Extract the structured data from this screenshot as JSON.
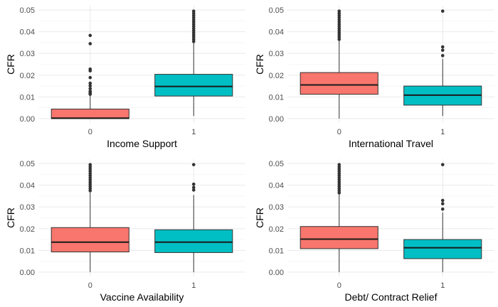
{
  "chart_data": [
    {
      "type": "box",
      "xlabel": "Income Support",
      "ylabel": "CFR",
      "ylim": [
        -0.002,
        0.052
      ],
      "yticks": [
        "0.00",
        "0.01",
        "0.02",
        "0.03",
        "0.04",
        "0.05"
      ],
      "categories": [
        "0",
        "1"
      ],
      "colors": [
        "#F8766D",
        "#00BFC4"
      ],
      "grid": true,
      "boxes": [
        {
          "category": "0",
          "q1": 0.0,
          "median": 0.0002,
          "q3": 0.0044,
          "whisker_low": 0.0,
          "whisker_high": 0.0108,
          "outliers": [
            0.0383,
            0.0345,
            0.0228,
            0.022,
            0.0189,
            0.0163,
            0.0151,
            0.0138,
            0.0126,
            0.0121,
            0.0116,
            0.0112
          ]
        },
        {
          "category": "1",
          "q1": 0.0104,
          "median": 0.0148,
          "q3": 0.0204,
          "whisker_low": 0.0012,
          "whisker_high": 0.035,
          "outliers": [
            0.0355,
            0.0365,
            0.0375,
            0.0385,
            0.0395,
            0.0405,
            0.0415,
            0.0425,
            0.0435,
            0.0445,
            0.0455,
            0.0465,
            0.0475,
            0.0485,
            0.0495
          ]
        }
      ]
    },
    {
      "type": "box",
      "xlabel": "International Travel",
      "ylabel": "CFR",
      "ylim": [
        -0.002,
        0.052
      ],
      "yticks": [
        "0.00",
        "0.01",
        "0.02",
        "0.03",
        "0.04",
        "0.05"
      ],
      "categories": [
        "0",
        "1"
      ],
      "colors": [
        "#F8766D",
        "#00BFC4"
      ],
      "grid": true,
      "boxes": [
        {
          "category": "0",
          "q1": 0.0112,
          "median": 0.0155,
          "q3": 0.0212,
          "whisker_low": 0.0,
          "whisker_high": 0.036,
          "outliers": [
            0.0365,
            0.0375,
            0.0385,
            0.0395,
            0.0405,
            0.0415,
            0.0425,
            0.0435,
            0.0445,
            0.0455,
            0.0465,
            0.0475,
            0.0485,
            0.0495
          ]
        },
        {
          "category": "1",
          "q1": 0.0062,
          "median": 0.0108,
          "q3": 0.015,
          "whisker_low": 0.0012,
          "whisker_high": 0.0275,
          "outliers": [
            0.0495,
            0.033,
            0.0315,
            0.029
          ]
        }
      ]
    },
    {
      "type": "box",
      "xlabel": "Vaccine Availability",
      "ylabel": "CFR",
      "ylim": [
        -0.002,
        0.052
      ],
      "yticks": [
        "0.00",
        "0.01",
        "0.02",
        "0.03",
        "0.04",
        "0.05"
      ],
      "categories": [
        "0",
        "1"
      ],
      "colors": [
        "#F8766D",
        "#00BFC4"
      ],
      "grid": true,
      "boxes": [
        {
          "category": "0",
          "q1": 0.0093,
          "median": 0.0138,
          "q3": 0.0205,
          "whisker_low": 0.0,
          "whisker_high": 0.037,
          "outliers": [
            0.0375,
            0.0385,
            0.0395,
            0.0405,
            0.0415,
            0.0425,
            0.0435,
            0.0445,
            0.0455,
            0.0465,
            0.0475,
            0.0485,
            0.0495
          ]
        },
        {
          "category": "1",
          "q1": 0.009,
          "median": 0.0138,
          "q3": 0.0195,
          "whisker_low": 0.0,
          "whisker_high": 0.0355,
          "outliers": [
            0.0495,
            0.0405,
            0.039,
            0.0378
          ]
        }
      ]
    },
    {
      "type": "box",
      "xlabel": "Debt/ Contract Relief",
      "ylabel": "CFR",
      "ylim": [
        -0.002,
        0.052
      ],
      "yticks": [
        "0.00",
        "0.01",
        "0.02",
        "0.03",
        "0.04",
        "0.05"
      ],
      "categories": [
        "0",
        "1"
      ],
      "colors": [
        "#F8766D",
        "#00BFC4"
      ],
      "grid": true,
      "boxes": [
        {
          "category": "0",
          "q1": 0.0108,
          "median": 0.0152,
          "q3": 0.021,
          "whisker_low": 0.0,
          "whisker_high": 0.036,
          "outliers": [
            0.0365,
            0.0375,
            0.0385,
            0.0395,
            0.0405,
            0.0415,
            0.0425,
            0.0435,
            0.0445,
            0.0455,
            0.0465,
            0.0475,
            0.0485,
            0.0495
          ]
        },
        {
          "category": "1",
          "q1": 0.0062,
          "median": 0.0112,
          "q3": 0.015,
          "whisker_low": 0.0,
          "whisker_high": 0.0275,
          "outliers": [
            0.0495,
            0.033,
            0.0315,
            0.029
          ]
        }
      ]
    }
  ]
}
